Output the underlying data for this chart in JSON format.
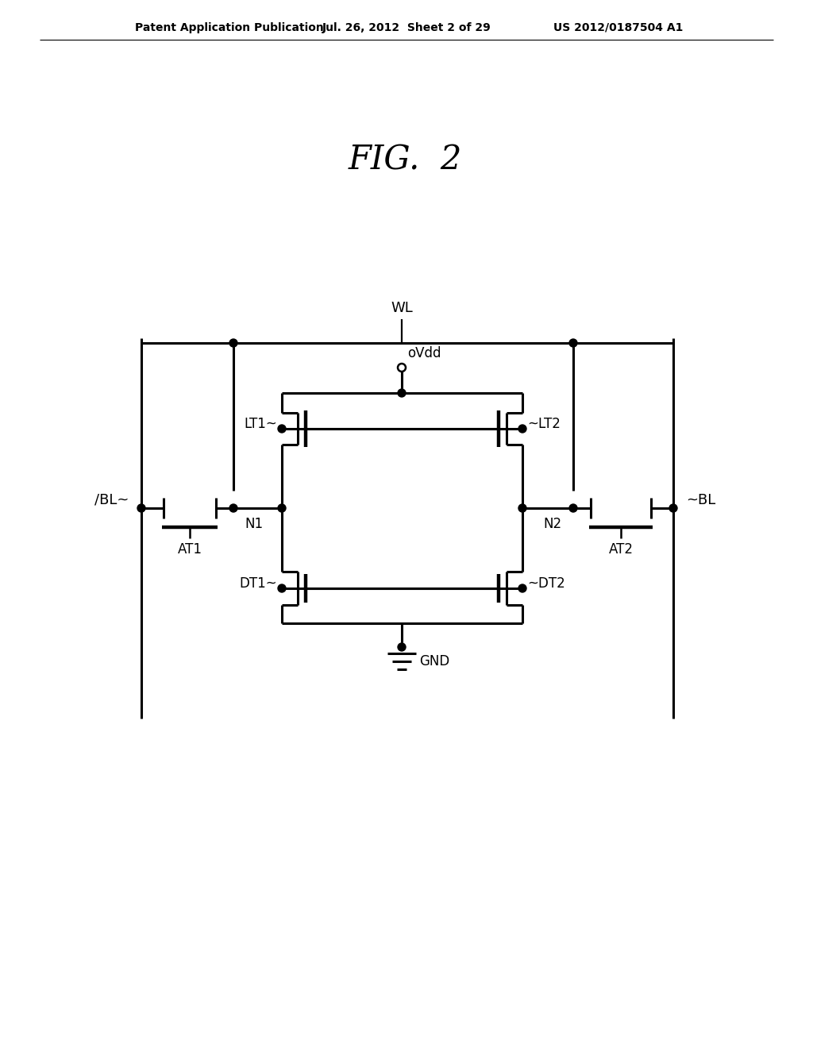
{
  "header_left": "Patent Application Publication",
  "header_mid": "Jul. 26, 2012  Sheet 2 of 29",
  "header_right": "US 2012/0187504 A1",
  "title": "FIG.  2",
  "bg_color": "#ffffff",
  "line_color": "#000000"
}
